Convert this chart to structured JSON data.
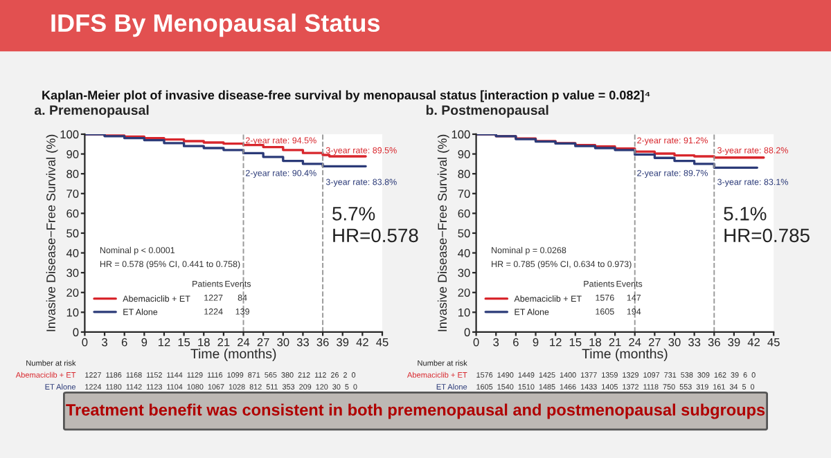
{
  "chart_data": [
    {
      "type": "step",
      "title": "a. Premenopausal",
      "xlabel": "Time (months)",
      "ylabel": "Invasive Disease−Free Survival (%)",
      "xlim": [
        0,
        45
      ],
      "xticks": [
        0,
        3,
        6,
        9,
        12,
        15,
        18,
        21,
        24,
        27,
        30,
        33,
        36,
        39,
        42,
        45
      ],
      "ylim": [
        0,
        100
      ],
      "yticks": [
        0,
        10,
        20,
        30,
        40,
        50,
        60,
        70,
        80,
        90,
        100
      ],
      "grid": false,
      "legend": "bottom left",
      "marker": "none",
      "line_style": "solid",
      "series": [
        {
          "name": "Abemaciclib + ET",
          "color": "#d8262c",
          "x": [
            0,
            3,
            6,
            9,
            12,
            15,
            18,
            21,
            24,
            27,
            30,
            33,
            36,
            37,
            42.5
          ],
          "values": [
            100,
            99.3,
            98.8,
            98,
            97.3,
            96.5,
            95.8,
            95.2,
            94.5,
            93.5,
            92,
            90.5,
            89.5,
            88.8,
            88.8
          ]
        },
        {
          "name": "ET Alone",
          "color": "#2b3a78",
          "x": [
            0,
            3,
            6,
            9,
            12,
            15,
            18,
            21,
            24,
            27,
            30,
            33,
            36,
            42.5
          ],
          "values": [
            100,
            99,
            98,
            97,
            95.5,
            94,
            93,
            92,
            90.4,
            88.5,
            86.5,
            85,
            83.8,
            83.8
          ]
        }
      ],
      "ref_lines": [
        {
          "axis": "x",
          "value": 24,
          "color": "#999999",
          "line_style": "dashed"
        },
        {
          "axis": "x",
          "value": 36,
          "color": "#999999",
          "line_style": "dashed"
        }
      ],
      "annotations": [
        "Nominal p < 0.0001",
        "HR = 0.578 (95% CI, 0.441 to 0.758)",
        "Patients",
        "Events",
        "1227",
        "84",
        "1224",
        "139",
        "5.7%",
        "HR=0.578",
        "Number at risk",
        "Abemaciclib + ET",
        "ET Alone",
        "1227  1186  1168  1152  1144  1129  1116  1099  871  565  380  212  112  26  2  0",
        "1224  1180  1142  1123  1104  1080  1067  1028  812  511  353  209  120  30  5  0",
        "2-year rate: 94.5%",
        "3-year rate: 89.5%",
        "2-year rate: 90.4%",
        "3-year rate: 83.8%",
        "IDFS By Menopausal Status",
        "Kaplan-Meier plot of invasive disease-free survival by menopausal status [interaction p value = 0.082]⁴",
        "Treatment benefit was consistent in both premenopausal and postmenopausal subgroups"
      ]
    },
    {
      "type": "step",
      "title": "b. Postmenopausal",
      "xlabel": "Time (months)",
      "ylabel": "Invasive Disease−Free Survival (%)",
      "xlim": [
        0,
        45
      ],
      "xticks": [
        0,
        3,
        6,
        9,
        12,
        15,
        18,
        21,
        24,
        27,
        30,
        33,
        36,
        39,
        42,
        45
      ],
      "ylim": [
        0,
        100
      ],
      "yticks": [
        0,
        10,
        20,
        30,
        40,
        50,
        60,
        70,
        80,
        90,
        100
      ],
      "grid": false,
      "legend": "bottom left",
      "marker": "none",
      "line_style": "solid",
      "series": [
        {
          "name": "Abemaciclib + ET",
          "color": "#d8262c",
          "x": [
            0,
            3,
            6,
            9,
            12,
            15,
            18,
            21,
            24,
            27,
            30,
            33,
            36,
            43.5
          ],
          "values": [
            100,
            99,
            97.8,
            96.5,
            95.5,
            94.5,
            93.8,
            92.8,
            91.2,
            90.2,
            89.3,
            88.8,
            88.2,
            88.2
          ]
        },
        {
          "name": "ET Alone",
          "color": "#2b3a78",
          "x": [
            0,
            3,
            6,
            9,
            12,
            15,
            18,
            21,
            24,
            27,
            30,
            33,
            36,
            42.5
          ],
          "values": [
            100,
            99,
            97.5,
            96.3,
            95.3,
            94,
            93,
            92,
            89.7,
            88,
            86.5,
            85,
            83.1,
            83.1
          ]
        }
      ],
      "ref_lines": [
        {
          "axis": "x",
          "value": 24,
          "color": "#999999",
          "line_style": "dashed"
        },
        {
          "axis": "x",
          "value": 36,
          "color": "#999999",
          "line_style": "dashed"
        }
      ],
      "annotations": [
        "Nominal p = 0.0268",
        "HR = 0.785 (95% CI, 0.634 to 0.973)",
        "Patients",
        "Events",
        "1576",
        "147",
        "1605",
        "194",
        "5.1%",
        "HR=0.785",
        "Number at risk",
        "Abemaciclib + ET",
        "ET Alone",
        "1576  1490  1449  1425  1400  1377  1359  1329  1097  731  538  309  162  39  6  0",
        "1605  1540  1510  1485  1466  1433  1405  1372  1118  750  553  319  161  34  5  0",
        "2-year rate: 91.2%",
        "3-year rate: 88.2%",
        "2-year rate: 89.7%",
        "3-year rate: 83.1%"
      ]
    }
  ]
}
